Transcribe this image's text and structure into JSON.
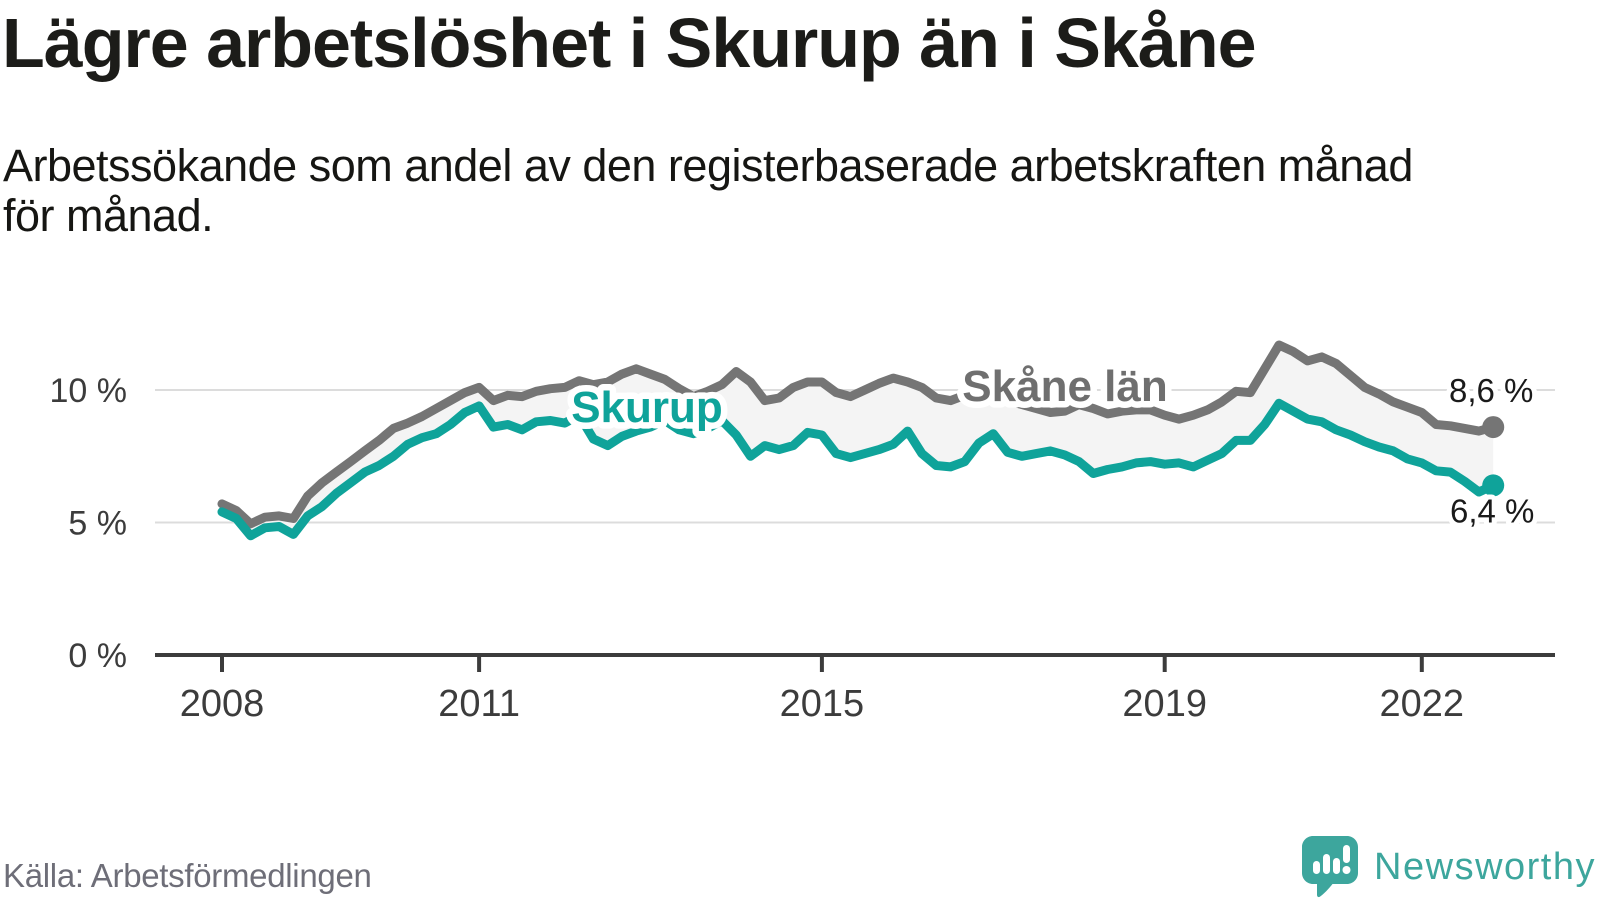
{
  "title": "Lägre arbetslöshet i Skurup än i Skåne",
  "subtitle_lines": [
    "Arbetssökande som andel av den registerbaserade arbetskraften månad",
    "för månad."
  ],
  "source": "Källa: Arbetsförmedlingen",
  "brand": {
    "name": "Newsworthy",
    "icon": "newsworthy-speech-bubble-bar-chart-icon"
  },
  "colors": {
    "teal": "#0fa39a",
    "gray": "#757575",
    "band_fill": "#f4f4f4",
    "gridline": "#dcdcdc",
    "axis": "#3c3c3c",
    "axis_text": "#3c3c3c",
    "value_label": "#1a1a1a",
    "logo_teal": "#3da69d"
  },
  "chart_data": {
    "type": "line",
    "unit": "%",
    "x_start": 2008.0,
    "x_step_years": 0.1666667,
    "x_ticks": [
      2008,
      2011,
      2015,
      2019,
      2022
    ],
    "y_ticks": [
      {
        "value": 0,
        "label": "0 %"
      },
      {
        "value": 5,
        "label": "5 %"
      },
      {
        "value": 10,
        "label": "10 %"
      }
    ],
    "ylim": [
      0,
      12.5
    ],
    "grid": "horizontal-only",
    "legend": "inline-labels",
    "band_between_series": true,
    "series": [
      {
        "name": "Skåne län",
        "color": "#757575",
        "end_label": "8,6 %",
        "end_value": 8.6,
        "values": [
          5.7,
          5.45,
          4.95,
          5.2,
          5.25,
          5.15,
          6.0,
          6.5,
          6.9,
          7.3,
          7.7,
          8.1,
          8.55,
          8.75,
          9.0,
          9.3,
          9.6,
          9.9,
          10.1,
          9.6,
          9.8,
          9.75,
          9.95,
          10.05,
          10.1,
          10.35,
          10.2,
          10.3,
          10.6,
          10.8,
          10.6,
          10.4,
          10.05,
          9.75,
          9.95,
          10.2,
          10.7,
          10.3,
          9.6,
          9.7,
          10.1,
          10.3,
          10.3,
          9.9,
          9.75,
          10.0,
          10.25,
          10.45,
          10.3,
          10.1,
          9.7,
          9.6,
          9.8,
          9.85,
          9.7,
          9.6,
          9.45,
          9.3,
          9.15,
          9.2,
          9.45,
          9.3,
          9.1,
          9.2,
          9.25,
          9.25,
          9.05,
          8.9,
          9.05,
          9.25,
          9.55,
          9.95,
          9.9,
          10.8,
          11.7,
          11.45,
          11.1,
          11.25,
          11.0,
          10.55,
          10.1,
          9.85,
          9.55,
          9.35,
          9.15,
          8.7,
          8.65,
          8.55,
          8.45,
          8.6
        ]
      },
      {
        "name": "Skurup",
        "color": "#0fa39a",
        "end_label": "6,4 %",
        "end_value": 6.4,
        "values": [
          5.4,
          5.15,
          4.5,
          4.8,
          4.85,
          4.55,
          5.25,
          5.6,
          6.1,
          6.5,
          6.9,
          7.15,
          7.5,
          7.95,
          8.2,
          8.35,
          8.7,
          9.15,
          9.4,
          8.6,
          8.7,
          8.5,
          8.8,
          8.85,
          8.75,
          9.05,
          8.15,
          7.9,
          8.25,
          8.45,
          8.6,
          8.85,
          8.5,
          8.35,
          8.55,
          8.85,
          8.3,
          7.5,
          7.9,
          7.75,
          7.9,
          8.4,
          8.3,
          7.6,
          7.45,
          7.6,
          7.75,
          7.95,
          8.45,
          7.6,
          7.15,
          7.1,
          7.3,
          8.0,
          8.35,
          7.65,
          7.5,
          7.6,
          7.7,
          7.55,
          7.3,
          6.85,
          7.0,
          7.1,
          7.25,
          7.3,
          7.2,
          7.25,
          7.1,
          7.35,
          7.6,
          8.1,
          8.1,
          8.7,
          9.5,
          9.2,
          8.9,
          8.8,
          8.5,
          8.3,
          8.05,
          7.85,
          7.7,
          7.4,
          7.25,
          6.95,
          6.9,
          6.55,
          6.15,
          6.4
        ]
      }
    ]
  }
}
